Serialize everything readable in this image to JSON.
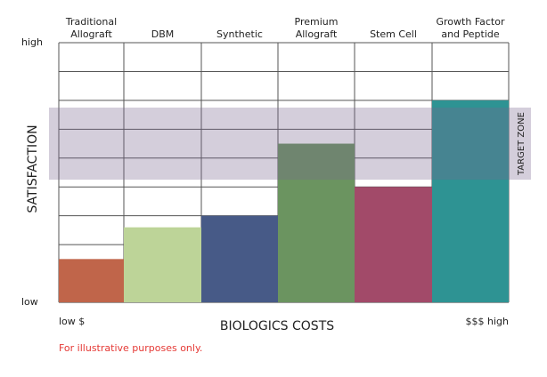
{
  "chart_data": {
    "type": "bar",
    "categories": [
      [
        "Traditional",
        "Allograft"
      ],
      [
        "DBM"
      ],
      [
        "Synthetic"
      ],
      [
        "Premium",
        "Allograft"
      ],
      [
        "Stem Cell"
      ],
      [
        "Growth Factor",
        "and Peptide"
      ]
    ],
    "values": [
      1.5,
      2.6,
      3.0,
      5.5,
      4.0,
      7.0
    ],
    "colors": [
      "#c0654a",
      "#bdd498",
      "#475a87",
      "#6b9460",
      "#a24a69",
      "#2e9393"
    ],
    "ylim": [
      0,
      9
    ],
    "yticks": [
      0,
      1,
      2,
      3,
      4,
      5,
      6,
      7,
      8,
      9
    ],
    "ylabels": [
      {
        "value": 0,
        "label": "low"
      },
      {
        "value": 9,
        "label": "high"
      }
    ],
    "ylabel": "SATISFACTION",
    "xlabel": "BIOLOGICS COSTS",
    "x_low_label": "low $",
    "x_high_label": "$$$ high",
    "target_zone": {
      "label": "TARGET ZONE",
      "range": [
        4.25,
        6.75
      ],
      "color": "#7a6890"
    },
    "grid": true,
    "note": "For illustrative purposes only."
  }
}
